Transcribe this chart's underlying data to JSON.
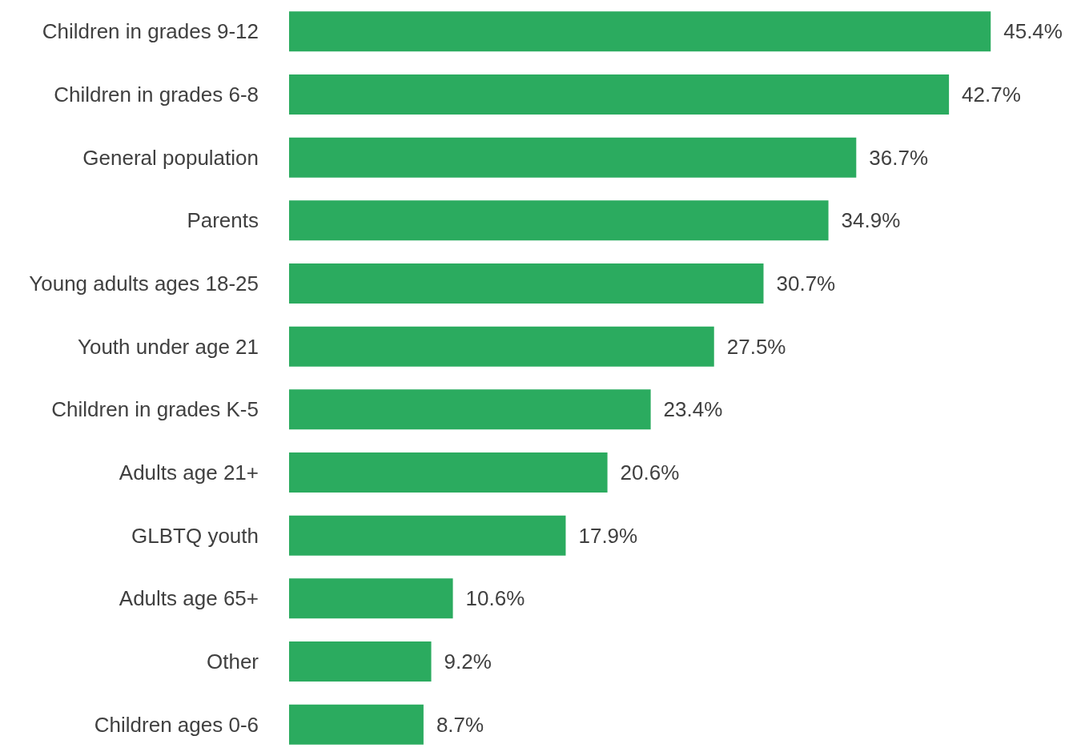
{
  "chart_data": {
    "type": "bar",
    "orientation": "horizontal",
    "categories": [
      "Children in grades 9-12",
      "Children in grades 6-8",
      "General population",
      "Parents",
      "Young adults ages 18-25",
      "Youth under age 21",
      "Children in grades K-5",
      "Adults age 21+",
      "GLBTQ youth",
      "Adults age 65+",
      "Other",
      "Children ages 0-6"
    ],
    "values": [
      45.4,
      42.7,
      36.7,
      34.9,
      30.7,
      27.5,
      23.4,
      20.6,
      17.9,
      10.6,
      9.2,
      8.7
    ],
    "value_labels": [
      "45.4%",
      "42.7%",
      "36.7%",
      "34.9%",
      "30.7%",
      "27.5%",
      "23.4%",
      "20.6%",
      "17.9%",
      "10.6%",
      "9.2%",
      "8.7%"
    ],
    "color": "#2bab5f",
    "tick_labels": "y"
  }
}
